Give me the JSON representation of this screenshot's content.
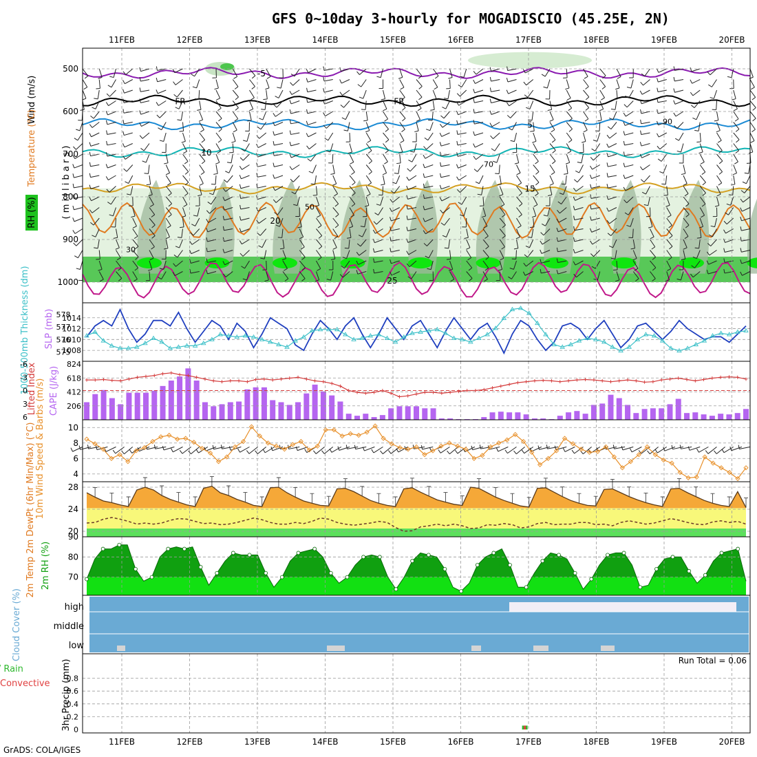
{
  "title": "GFS 0~10day 3-hourly for MOGADISCIO (45.25E, 2N)",
  "credit": "GrADS: COLA/IGES",
  "date_labels": [
    "11FEB",
    "12FEB",
    "13FEB",
    "14FEB",
    "15FEB",
    "16FEB",
    "17FEB",
    "18FEB",
    "19FEB",
    "20FEB"
  ],
  "colors": {
    "slp": "#1f3fbf",
    "thickness": "#3cc0c8",
    "lifted": "#d43a3a",
    "cape": "#b565f0",
    "wind": "#e8902a",
    "temp_fill": "#f5a838",
    "dew_fill": "#f8f87a",
    "rh_dark": "#10a010",
    "rh_light": "#12e012",
    "cloud": "#6aaad4",
    "rain": "#2eb82e",
    "convective": "#e04040"
  },
  "chart_data": [
    {
      "panel": "upper-air",
      "type": "contour",
      "ylabel_parts": [
        "Wind (m/s)",
        "Temperature (°C)",
        "RH (%)",
        "( m i l l i b a r s )"
      ],
      "yticks": [
        500,
        600,
        700,
        800,
        900,
        1000
      ],
      "ylim": [
        450,
        1000
      ],
      "isotherms": [
        {
          "label": "-5",
          "level": 510,
          "color": "#8a1ab0"
        },
        {
          "label": "FR",
          "level": 575,
          "color": "#000000"
        },
        {
          "label": "5",
          "level": 630,
          "color": "#1a8ad4"
        },
        {
          "label": "10",
          "level": 695,
          "color": "#10b4b4"
        },
        {
          "label": "15",
          "level": 780,
          "color": "#d4a020"
        },
        {
          "label": "20",
          "level": 855,
          "color": "#e07a20"
        },
        {
          "label": "25",
          "level": 995,
          "color": "#c0188a"
        }
      ],
      "rh_labels": [
        "30",
        "50",
        "70",
        "90"
      ]
    },
    {
      "panel": "slp-thickness",
      "type": "line",
      "ylabel_left": "1000-500mb Thickness (dm)",
      "ylabel_right": "SLP (mb)",
      "left_ticks": [
        575,
        576,
        577,
        578
      ],
      "right_ticks": [
        1008,
        1010,
        1012,
        1014
      ],
      "series": [
        {
          "name": "SLP",
          "axis": "right",
          "ylim": [
            1007,
            1016
          ],
          "values": [
            1010.5,
            1012.5,
            1013.5,
            1012.5,
            1015.5,
            1012.0,
            1009.5,
            1011.0,
            1013.5,
            1013.5,
            1012.5,
            1015.0,
            1012.0,
            1009.5,
            1011.5,
            1013.5,
            1012.5,
            1010.0,
            1013.0,
            1011.5,
            1008.5,
            1011.0,
            1014.0,
            1013.0,
            1012.0,
            1009.0,
            1008.0,
            1011.0,
            1013.5,
            1012.0,
            1010.0,
            1012.5,
            1014.0,
            1011.0,
            1008.5,
            1011.0,
            1014.0,
            1012.0,
            1010.0,
            1012.5,
            1013.5,
            1011.0,
            1008.5,
            1011.5,
            1014.0,
            1012.0,
            1010.0,
            1012.0,
            1013.0,
            1010.5,
            1007.5,
            1011.0,
            1013.5,
            1012.5,
            1010.0,
            1008.0,
            1009.5,
            1012.5,
            1013.0,
            1012.0,
            1010.0,
            1012.0,
            1013.5,
            1011.0,
            1008.5,
            1010.0,
            1012.5,
            1013.0,
            1011.5,
            1010.0,
            1011.5,
            1013.5,
            1012.0,
            1011.0,
            1010.0,
            1010.5,
            1010.5,
            1009.5,
            1011.0,
            1012.5
          ]
        },
        {
          "name": "Thickness",
          "axis": "left",
          "ylim": [
            574.7,
            578.6
          ],
          "values": [
            576.3,
            576.6,
            575.9,
            575.5,
            575.3,
            575.3,
            575.4,
            575.7,
            576.1,
            575.8,
            575.3,
            575.4,
            575.5,
            575.5,
            575.7,
            576.0,
            576.4,
            576.3,
            576.2,
            576.3,
            576.2,
            576.0,
            575.8,
            575.6,
            575.4,
            575.9,
            576.2,
            576.7,
            576.8,
            576.8,
            576.8,
            576.4,
            576.0,
            576.1,
            576.3,
            576.4,
            576.1,
            575.8,
            576.2,
            576.5,
            576.6,
            576.7,
            576.8,
            576.5,
            576.1,
            576.0,
            575.8,
            576.1,
            576.4,
            576.9,
            577.7,
            578.4,
            578.5,
            578.1,
            577.3,
            576.4,
            575.6,
            575.4,
            575.6,
            575.9,
            576.1,
            576.0,
            575.8,
            575.4,
            575.1,
            575.4,
            576.0,
            576.4,
            576.3,
            575.9,
            575.3,
            575.1,
            575.3,
            575.6,
            575.9,
            576.3,
            576.5,
            576.4,
            576.6,
            576.7
          ]
        }
      ]
    },
    {
      "panel": "lifted-cape",
      "type": "bar",
      "ylabel_left": "Lifted Index",
      "ylabel_right": "CAPE (J/kg)",
      "left_ticks": [
        "-6",
        "-3",
        "0",
        "3",
        "6"
      ],
      "right_ticks": [
        206,
        412,
        618,
        824
      ],
      "series": [
        {
          "name": "CAPE",
          "ylim": [
            0,
            824
          ],
          "values": [
            260,
            380,
            440,
            320,
            230,
            400,
            400,
            400,
            430,
            500,
            580,
            640,
            760,
            580,
            260,
            200,
            230,
            260,
            270,
            450,
            480,
            480,
            290,
            260,
            220,
            260,
            390,
            520,
            420,
            360,
            270,
            90,
            60,
            90,
            40,
            70,
            170,
            200,
            200,
            200,
            170,
            170,
            20,
            20,
            10,
            10,
            10,
            40,
            110,
            120,
            110,
            110,
            80,
            20,
            20,
            10,
            60,
            110,
            130,
            90,
            220,
            240,
            370,
            320,
            220,
            100,
            160,
            170,
            170,
            230,
            310,
            100,
            110,
            80,
            60,
            90,
            80,
            100,
            160
          ]
        },
        {
          "name": "Lifted Index",
          "ylim": [
            6,
            -6
          ],
          "values": [
            -2.4,
            -2.4,
            -2.5,
            -2.3,
            -2.2,
            -2.6,
            -3.0,
            -3.2,
            -3.4,
            -3.8,
            -4.0,
            -3.6,
            -3.4,
            -3.0,
            -2.6,
            -2.2,
            -2.0,
            -2.2,
            -2.2,
            -2.0,
            -2.5,
            -2.6,
            -2.4,
            -2.6,
            -2.8,
            -3.0,
            -2.6,
            -2.2,
            -2.0,
            -1.6,
            -1.0,
            0.0,
            0.4,
            0.6,
            0.4,
            0.0,
            0.6,
            1.4,
            1.2,
            0.8,
            0.4,
            0.4,
            0.6,
            0.4,
            0.2,
            0.0,
            0.0,
            -0.2,
            -0.6,
            -1.0,
            -1.4,
            -1.8,
            -2.0,
            -2.2,
            -2.3,
            -2.2,
            -2.0,
            -2.2,
            -2.4,
            -2.5,
            -2.4,
            -2.2,
            -2.0,
            -2.2,
            -2.4,
            -2.2,
            -1.9,
            -2.0,
            -2.4,
            -2.6,
            -2.8,
            -2.5,
            -2.2,
            -2.5,
            -2.8,
            -3.0,
            -3.1,
            -3.0,
            -2.6
          ]
        }
      ]
    },
    {
      "panel": "wind",
      "type": "line",
      "ylabel": "10m Wind Speed & Barbs (m/s)",
      "yticks": [
        4,
        6,
        8,
        10
      ],
      "ylim": [
        3,
        11
      ],
      "series": [
        {
          "name": "10m Wind Speed",
          "values": [
            8.5,
            7.9,
            7.2,
            6.0,
            6.5,
            5.6,
            7.0,
            7.4,
            8.2,
            8.8,
            9.0,
            8.5,
            8.6,
            8.1,
            7.3,
            6.7,
            5.6,
            6.2,
            7.5,
            8.2,
            10.1,
            8.9,
            8.0,
            7.6,
            7.2,
            7.8,
            8.2,
            7.1,
            7.6,
            9.7,
            9.7,
            8.9,
            9.2,
            9.0,
            9.4,
            10.2,
            8.6,
            7.9,
            7.4,
            7.2,
            7.5,
            6.5,
            7.0,
            7.6,
            8.0,
            7.6,
            7.2,
            6.0,
            6.4,
            7.5,
            8.0,
            8.4,
            9.1,
            8.2,
            6.8,
            5.2,
            6.0,
            7.0,
            8.6,
            7.9,
            7.2,
            6.8,
            6.9,
            7.5,
            6.2,
            4.8,
            5.6,
            6.5,
            7.5,
            6.5,
            5.8,
            5.4,
            4.2,
            3.5,
            3.6,
            6.2,
            5.4,
            4.8,
            4.2,
            3.4,
            4.8
          ]
        }
      ]
    },
    {
      "panel": "temperature",
      "type": "area",
      "ylabel": "2m Temp 2m DewPt (6hr Min/Max) (°C)",
      "yticks": [
        20,
        24,
        28
      ],
      "ylim": [
        19,
        29
      ],
      "series": [
        {
          "name": "2m Temp",
          "values": [
            27.0,
            26.2,
            25.5,
            25.2,
            24.8,
            24.5,
            27.5,
            28.0,
            27.5,
            26.5,
            25.8,
            25.3,
            24.8,
            24.5,
            27.8,
            28.2,
            27.0,
            26.5,
            25.8,
            25.3,
            24.7,
            24.5,
            27.9,
            28.0,
            27.0,
            26.2,
            25.5,
            25.1,
            24.7,
            24.6,
            27.7,
            27.8,
            27.2,
            26.4,
            25.6,
            25.1,
            24.7,
            24.5,
            27.7,
            27.9,
            27.1,
            26.4,
            25.7,
            25.3,
            24.9,
            24.7,
            28.0,
            27.8,
            27.0,
            26.2,
            25.6,
            25.1,
            24.6,
            24.4,
            27.8,
            27.9,
            27.1,
            26.3,
            25.6,
            25.1,
            24.7,
            24.6,
            27.6,
            27.7,
            27.0,
            26.3,
            25.7,
            25.2,
            24.8,
            24.5,
            27.7,
            27.8,
            27.0,
            26.3,
            25.6,
            25.1,
            24.7,
            24.5,
            27.2,
            24.3
          ]
        },
        {
          "name": "2m DewPt",
          "values": [
            21.5,
            21.6,
            22.2,
            22.5,
            22.2,
            21.8,
            21.3,
            21.5,
            21.3,
            21.5,
            22.0,
            22.3,
            22.2,
            21.8,
            21.4,
            21.5,
            21.2,
            21.3,
            21.6,
            22.0,
            22.4,
            22.1,
            21.6,
            21.3,
            21.3,
            21.6,
            21.4,
            21.8,
            22.4,
            22.2,
            21.6,
            21.3,
            21.1,
            21.3,
            21.5,
            21.8,
            21.6,
            20.7,
            20.0,
            20.1,
            20.8,
            21.0,
            21.3,
            21.0,
            21.3,
            21.0,
            20.5,
            20.6,
            21.2,
            21.1,
            21.4,
            21.2,
            20.6,
            20.8,
            21.4,
            21.6,
            21.2,
            21.3,
            21.3,
            21.6,
            21.6,
            21.2,
            21.3,
            21.0,
            21.6,
            21.9,
            21.6,
            21.3,
            21.5,
            21.9,
            22.3,
            22.0,
            21.6,
            21.3,
            21.2,
            21.7,
            21.9,
            21.6,
            21.8,
            21.3
          ]
        }
      ]
    },
    {
      "panel": "rh",
      "type": "area",
      "ylabel": "2m RH (%)",
      "yticks": [
        70,
        80,
        90
      ],
      "ylim": [
        61,
        90
      ],
      "series": [
        {
          "name": "2m RH",
          "values": [
            69,
            79,
            84,
            84,
            86,
            86,
            74,
            68,
            70,
            80,
            84,
            85,
            84,
            85,
            75,
            66,
            72,
            78,
            82,
            81,
            81,
            81,
            72,
            65,
            70,
            78,
            82,
            83,
            84,
            80,
            72,
            67,
            70,
            76,
            80,
            81,
            80,
            70,
            64,
            70,
            78,
            82,
            81,
            80,
            74,
            65,
            63,
            67,
            76,
            80,
            82,
            84,
            76,
            65,
            65,
            72,
            78,
            82,
            81,
            79,
            72,
            64,
            69,
            76,
            81,
            82,
            82,
            76,
            65,
            66,
            74,
            79,
            80,
            80,
            73,
            67,
            71,
            78,
            82,
            83,
            84,
            68
          ]
        }
      ]
    },
    {
      "panel": "cloud",
      "type": "heatmap",
      "ylabel": "Cloud Cover (%)",
      "levels": [
        "high",
        "middle",
        "low"
      ]
    },
    {
      "panel": "precip",
      "type": "bar",
      "ylabel": "3hr Precip (mm)",
      "ylabel_left_parts": [
        "tal / Rain",
        "Convective"
      ],
      "yticks": [
        "0",
        "0.2",
        "0.4",
        "0.6",
        "0.8"
      ],
      "ylim": [
        0,
        1.0
      ],
      "run_total": "Run Total = 0.06",
      "events": [
        {
          "step": 53,
          "total": 0.06,
          "convective": 0.03
        }
      ]
    }
  ]
}
